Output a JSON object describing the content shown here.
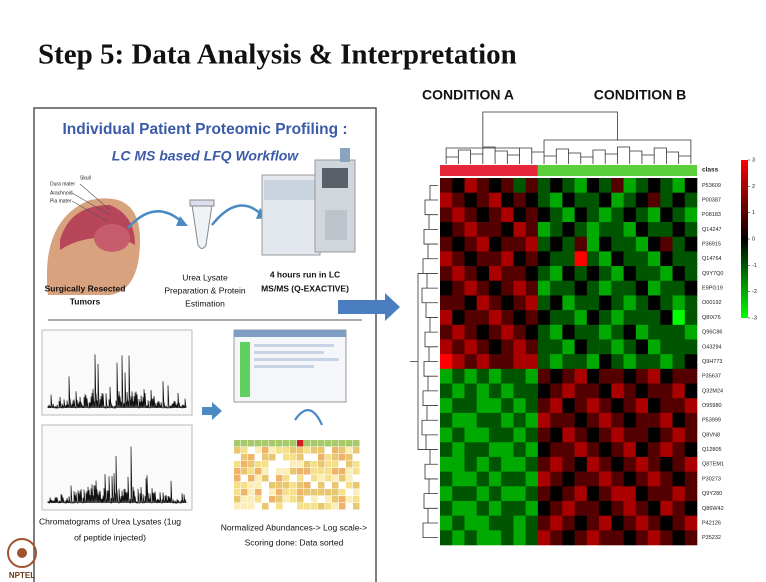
{
  "title": "Step 5: Data Analysis & Interpretation",
  "workflow": {
    "heading": "Individual Patient Proteomic Profiling :",
    "subheading": "LC MS based LFQ Workflow",
    "skull_labels": [
      "Skull",
      "Dura mater",
      "Arachnoid",
      "Pia mater"
    ],
    "step1": [
      "Surgically Resected",
      "Tumors"
    ],
    "step2": [
      "Urea Lysate",
      "Preparation & Protein",
      "Estimation"
    ],
    "step3": [
      "4 hours run in LC",
      "MS/MS (Q-EXACTIVE)"
    ],
    "step4": [
      "Chromatograms of Urea Lysates (1ug",
      "of peptide injected)"
    ],
    "step5": [
      "Normalized Abundances-> Log scale->",
      "Scoring done: Data sorted"
    ]
  },
  "logo": "NPTEL",
  "chart_data": {
    "type": "heatmap",
    "groups": [
      {
        "label": "CONDITION A",
        "count": 8,
        "color": "#e5283a"
      },
      {
        "label": "CONDITION B",
        "count": 13,
        "color": "#5ccf3c"
      }
    ],
    "class_label": "class",
    "row_labels": [
      "P53609",
      "P00387",
      "P08183",
      "Q14247",
      "P36915",
      "Q14764",
      "Q9Y7Q0",
      "E9PG19",
      "O00192",
      "Q8IX76",
      "Q96C86",
      "O43294",
      "Q9H773",
      "P35637",
      "Q32M24",
      "O95980",
      "P53999",
      "Q8VN8",
      "Q12805",
      "Q8TEM1",
      "P30273",
      "Q9Y280",
      "Q86W42",
      "P42126",
      "P35232"
    ],
    "values": [
      [
        1,
        0,
        2,
        1,
        0,
        1,
        -1,
        1,
        -1,
        0,
        -1,
        -2,
        0,
        -1,
        1,
        -2,
        -1,
        0,
        -1,
        -2,
        0
      ],
      [
        2,
        1,
        0,
        1,
        2,
        0,
        1,
        0,
        -1,
        -2,
        0,
        -1,
        -1,
        0,
        -2,
        -1,
        0,
        1,
        -1,
        0,
        -1
      ],
      [
        1,
        2,
        1,
        0,
        1,
        2,
        0,
        1,
        0,
        -1,
        -2,
        0,
        -1,
        -2,
        -1,
        0,
        -1,
        -2,
        0,
        -1,
        -2
      ],
      [
        0,
        1,
        2,
        1,
        1,
        0,
        2,
        1,
        -2,
        -1,
        0,
        -1,
        -2,
        -1,
        -1,
        -2,
        0,
        -1,
        -1,
        0,
        -1
      ],
      [
        1,
        0,
        1,
        2,
        0,
        1,
        1,
        2,
        -1,
        0,
        -1,
        1,
        -2,
        0,
        -1,
        -1,
        -2,
        0,
        1,
        -1,
        0
      ],
      [
        2,
        1,
        0,
        1,
        1,
        2,
        0,
        1,
        0,
        -1,
        -1,
        3,
        -1,
        -2,
        0,
        -1,
        -1,
        -2,
        0,
        -1,
        -1
      ],
      [
        1,
        2,
        1,
        0,
        2,
        1,
        1,
        0,
        -1,
        -2,
        0,
        -1,
        0,
        -1,
        -2,
        0,
        -1,
        -1,
        -2,
        0,
        -1
      ],
      [
        0,
        1,
        2,
        1,
        0,
        1,
        2,
        1,
        -2,
        -1,
        -1,
        0,
        -1,
        -2,
        -1,
        -1,
        0,
        -2,
        -1,
        -1,
        0
      ],
      [
        1,
        1,
        0,
        2,
        1,
        0,
        1,
        2,
        -1,
        0,
        -2,
        -1,
        -1,
        0,
        -1,
        -2,
        -1,
        0,
        -1,
        -2,
        -1
      ],
      [
        2,
        0,
        1,
        1,
        2,
        1,
        0,
        1,
        0,
        -1,
        -1,
        -2,
        0,
        -1,
        -2,
        -1,
        -1,
        -1,
        0,
        -3,
        -1
      ],
      [
        1,
        2,
        1,
        0,
        1,
        2,
        1,
        0,
        -1,
        -2,
        0,
        -1,
        -1,
        -2,
        -1,
        0,
        -2,
        -1,
        -1,
        -1,
        -2
      ],
      [
        2,
        1,
        2,
        1,
        0,
        1,
        2,
        1,
        -1,
        -1,
        -2,
        0,
        -1,
        -1,
        -2,
        -1,
        0,
        -2,
        -1,
        -1,
        -1
      ],
      [
        3,
        2,
        1,
        2,
        1,
        1,
        2,
        2,
        -1,
        -2,
        -1,
        -1,
        -2,
        0,
        -1,
        -2,
        -1,
        -1,
        -2,
        -1,
        0
      ],
      [
        -2,
        -1,
        -2,
        -1,
        -2,
        -1,
        -1,
        -2,
        1,
        0,
        1,
        2,
        0,
        1,
        1,
        0,
        1,
        2,
        0,
        1,
        1
      ],
      [
        -1,
        -2,
        -1,
        -2,
        -1,
        -2,
        -1,
        -1,
        0,
        1,
        2,
        1,
        1,
        0,
        2,
        1,
        0,
        1,
        1,
        2,
        0
      ],
      [
        -2,
        -1,
        -1,
        -2,
        -2,
        -1,
        -2,
        -1,
        1,
        2,
        0,
        1,
        2,
        1,
        0,
        1,
        2,
        0,
        1,
        1,
        2
      ],
      [
        -1,
        -2,
        -2,
        -1,
        -1,
        -2,
        -1,
        -2,
        2,
        1,
        1,
        0,
        1,
        2,
        1,
        0,
        1,
        1,
        2,
        0,
        1
      ],
      [
        -2,
        -1,
        -2,
        -2,
        -1,
        -1,
        -2,
        -1,
        1,
        0,
        2,
        1,
        0,
        1,
        2,
        1,
        1,
        0,
        1,
        2,
        1
      ],
      [
        -1,
        -2,
        -1,
        -1,
        -2,
        -2,
        -1,
        -2,
        0,
        1,
        1,
        2,
        1,
        0,
        1,
        2,
        0,
        1,
        2,
        1,
        0
      ],
      [
        -2,
        -2,
        -1,
        -2,
        -1,
        -2,
        -2,
        -1,
        1,
        2,
        1,
        0,
        2,
        1,
        0,
        1,
        2,
        1,
        0,
        1,
        2
      ],
      [
        -1,
        -2,
        -2,
        -1,
        -2,
        -1,
        -1,
        -2,
        2,
        1,
        0,
        1,
        1,
        2,
        1,
        0,
        1,
        2,
        1,
        0,
        1
      ],
      [
        -2,
        -1,
        -1,
        -2,
        -1,
        -2,
        -2,
        -1,
        1,
        0,
        1,
        2,
        0,
        1,
        2,
        2,
        0,
        1,
        1,
        2,
        1
      ],
      [
        -1,
        -2,
        -2,
        -1,
        -2,
        -1,
        -1,
        -2,
        0,
        1,
        2,
        1,
        1,
        0,
        1,
        2,
        1,
        0,
        2,
        1,
        0
      ],
      [
        -2,
        -1,
        -2,
        -2,
        -1,
        -1,
        -2,
        -1,
        1,
        2,
        1,
        0,
        1,
        2,
        0,
        1,
        2,
        1,
        0,
        1,
        2
      ],
      [
        -1,
        -2,
        -1,
        -2,
        -2,
        -1,
        -2,
        -1,
        2,
        1,
        0,
        1,
        2,
        1,
        1,
        0,
        1,
        2,
        1,
        0,
        1
      ]
    ],
    "clim": [
      -3,
      3
    ],
    "colors": {
      "low": "#00ff00",
      "mid": "#000000",
      "high": "#ff0000"
    },
    "colorbar_ticks": [
      3,
      2,
      1,
      0,
      -1,
      -2,
      -3
    ]
  }
}
